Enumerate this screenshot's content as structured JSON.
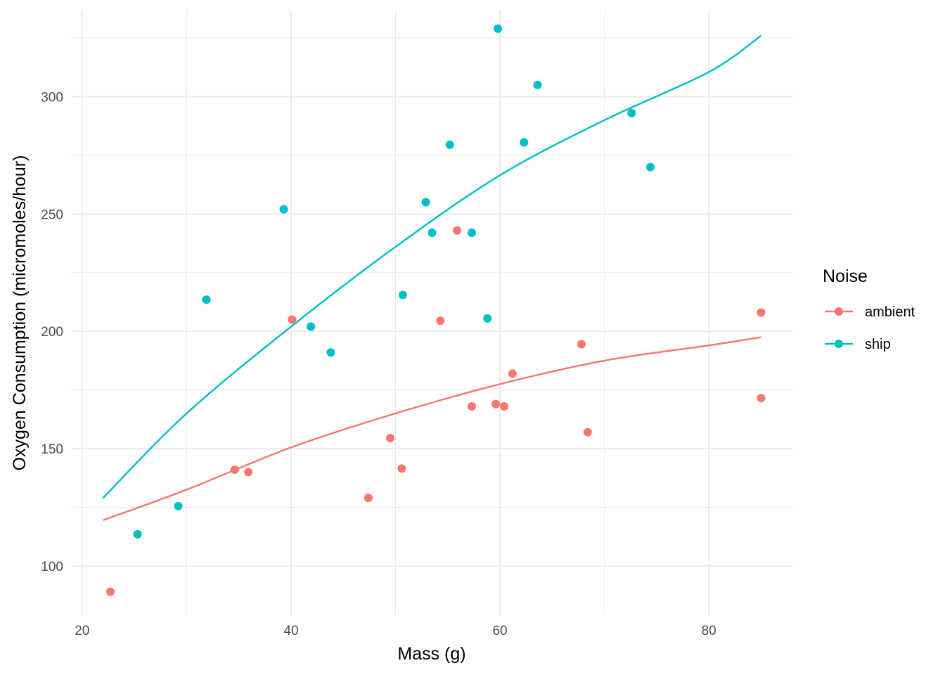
{
  "chart_data": {
    "type": "scatter",
    "title": "",
    "xlabel": "Mass (g)",
    "ylabel": "Oxygen Consumption (micromoles/hour)",
    "xlim": [
      19,
      88
    ],
    "ylim": [
      79,
      337
    ],
    "x_ticks": [
      20,
      40,
      60,
      80
    ],
    "x_tick_labels": [
      "20",
      "40",
      "60",
      "80"
    ],
    "x_minor_ticks": [
      30,
      50,
      70
    ],
    "y_ticks": [
      100,
      150,
      200,
      250,
      300
    ],
    "y_tick_labels": [
      "100",
      "150",
      "200",
      "250",
      "300"
    ],
    "y_minor_ticks": [
      125,
      175,
      225,
      275,
      325
    ],
    "grid": true,
    "legend": {
      "title": "Noise",
      "position": "right",
      "entries": [
        "ambient",
        "ship"
      ]
    },
    "series": [
      {
        "name": "ambient",
        "color": "#F8766D",
        "points": [
          [
            22.7,
            89
          ],
          [
            34.6,
            141
          ],
          [
            35.9,
            140
          ],
          [
            40.1,
            205
          ],
          [
            47.4,
            129
          ],
          [
            49.5,
            154.5
          ],
          [
            50.6,
            141.5
          ],
          [
            54.3,
            204.5
          ],
          [
            55.9,
            243
          ],
          [
            57.3,
            168
          ],
          [
            59.6,
            169
          ],
          [
            60.4,
            168
          ],
          [
            61.2,
            182
          ],
          [
            67.8,
            194.5
          ],
          [
            68.4,
            157
          ],
          [
            85.0,
            208
          ],
          [
            85.0,
            171.5
          ]
        ],
        "fit": [
          [
            22,
            119.5
          ],
          [
            30,
            132.5
          ],
          [
            40,
            150.5
          ],
          [
            50,
            165
          ],
          [
            60,
            177.5
          ],
          [
            70,
            187.5
          ],
          [
            80,
            194
          ],
          [
            85,
            197.5
          ]
        ]
      },
      {
        "name": "ship",
        "color": "#00BFC4",
        "points": [
          [
            25.3,
            113.5
          ],
          [
            29.2,
            125.5
          ],
          [
            31.9,
            213.5
          ],
          [
            39.3,
            252
          ],
          [
            41.9,
            202
          ],
          [
            43.8,
            191
          ],
          [
            50.7,
            215.5
          ],
          [
            52.9,
            255
          ],
          [
            53.5,
            242
          ],
          [
            55.2,
            279.5
          ],
          [
            57.3,
            242
          ],
          [
            58.8,
            205.5
          ],
          [
            59.8,
            329
          ],
          [
            62.3,
            280.5
          ],
          [
            63.6,
            305
          ],
          [
            72.6,
            293
          ],
          [
            74.4,
            270
          ]
        ],
        "fit": [
          [
            22,
            129
          ],
          [
            30,
            165
          ],
          [
            40,
            202
          ],
          [
            50,
            236
          ],
          [
            60,
            266.5
          ],
          [
            70,
            290
          ],
          [
            80,
            310.5
          ],
          [
            85,
            326
          ]
        ]
      }
    ]
  }
}
